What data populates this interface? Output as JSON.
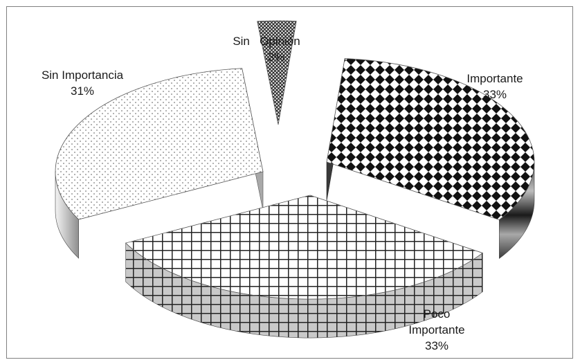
{
  "chart_data": {
    "type": "pie",
    "style": "3d-exploded",
    "title": "",
    "slices": [
      {
        "name": "Importante",
        "label_lines": [
          "Importante"
        ],
        "value": 33,
        "label": "33%",
        "pattern": "diamond"
      },
      {
        "name": "Poco Importante",
        "label_lines": [
          "Poco",
          "Importante"
        ],
        "value": 33,
        "label": "33%",
        "pattern": "grid"
      },
      {
        "name": "Sin Importancia",
        "label_lines": [
          "Sin Importancia"
        ],
        "value": 31,
        "label": "31%",
        "pattern": "dots"
      },
      {
        "name": "Sin Opinión",
        "label_lines": [
          "Sin",
          "Opinión"
        ],
        "value": 3,
        "label": "3%",
        "pattern": "dense"
      }
    ],
    "legend": "none",
    "data_labels": "outside"
  }
}
